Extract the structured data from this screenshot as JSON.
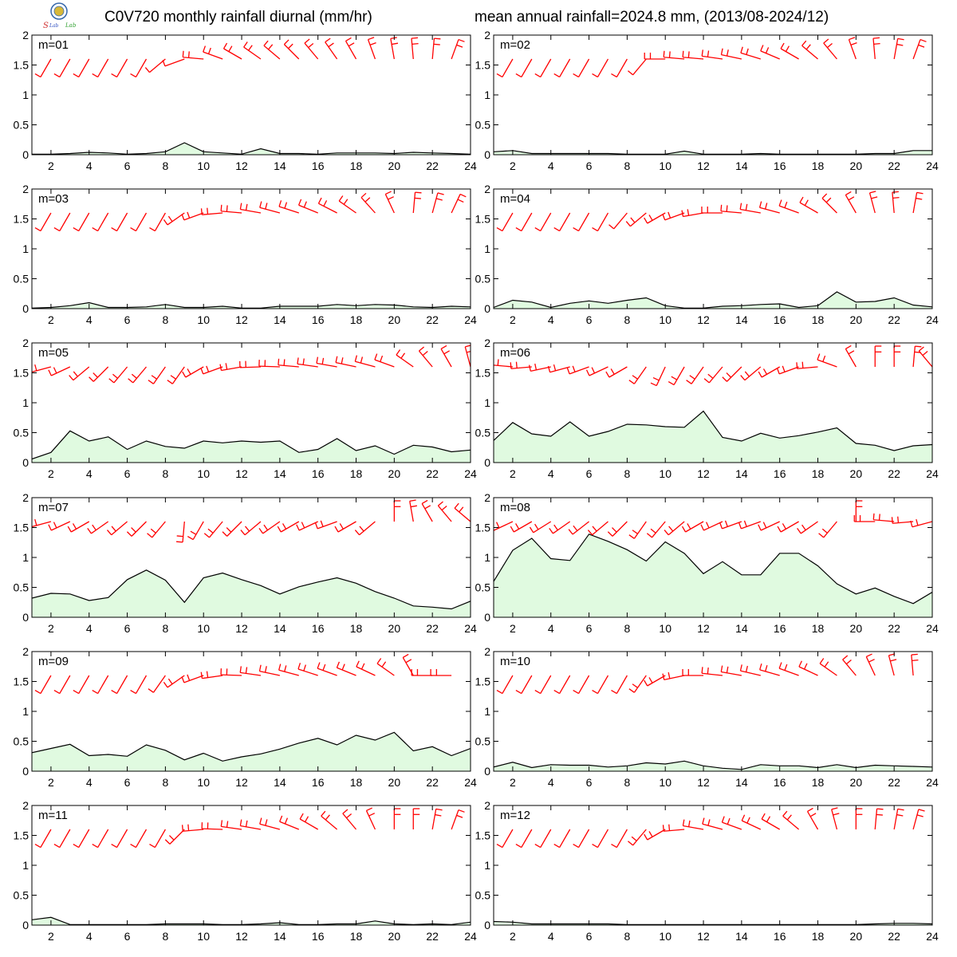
{
  "header": {
    "title_left": "C0V720 monthly rainfall diurnal (mm/hr)",
    "title_right": "mean annual rainfall=2024.8 mm, (2013/08-2024/12)",
    "logo_icon": "lab-seal-logo"
  },
  "colors": {
    "line": "#000000",
    "fill": "#e0fae0",
    "wind": "#ff0000",
    "frame": "#000000"
  },
  "chart_data": {
    "type": "area",
    "x": [
      1,
      2,
      3,
      4,
      5,
      6,
      7,
      8,
      9,
      10,
      11,
      12,
      13,
      14,
      15,
      16,
      17,
      18,
      19,
      20,
      21,
      22,
      23,
      24
    ],
    "x_ticks": [
      2,
      4,
      6,
      8,
      10,
      12,
      14,
      16,
      18,
      20,
      22,
      24
    ],
    "y_ticks": [
      0,
      0.5,
      1,
      1.5,
      2
    ],
    "y_tick_labels": [
      "0",
      "0.5",
      "1",
      "1.5",
      "2"
    ],
    "xlim": [
      1,
      24
    ],
    "ylim": [
      0,
      2
    ],
    "grid": false,
    "panels": [
      {
        "label": "m=01",
        "values": [
          0.01,
          0.01,
          0.02,
          0.04,
          0.03,
          0.01,
          0.02,
          0.05,
          0.2,
          0.05,
          0.03,
          0.01,
          0.1,
          0.02,
          0.02,
          0.01,
          0.03,
          0.03,
          0.03,
          0.02,
          0.04,
          0.03,
          0.02,
          0.01
        ],
        "wind_dir": [
          210,
          210,
          210,
          210,
          210,
          210,
          210,
          230,
          250,
          275,
          290,
          300,
          305,
          310,
          315,
          320,
          325,
          330,
          340,
          350,
          355,
          5,
          20,
          30
        ],
        "wind_speed": [
          1,
          1,
          1,
          1,
          1,
          1,
          1,
          1,
          1,
          2,
          2,
          2,
          2,
          2,
          2,
          2,
          2,
          2,
          2,
          2,
          2,
          2,
          2,
          2
        ]
      },
      {
        "label": "m=02",
        "values": [
          0.05,
          0.07,
          0.02,
          0.02,
          0.02,
          0.02,
          0.02,
          0.01,
          0.01,
          0.01,
          0.06,
          0.01,
          0.01,
          0.01,
          0.02,
          0.01,
          0.01,
          0.01,
          0.01,
          0.01,
          0.02,
          0.02,
          0.07,
          0.07
        ],
        "wind_dir": [
          210,
          210,
          210,
          210,
          210,
          210,
          210,
          210,
          220,
          270,
          275,
          275,
          278,
          282,
          287,
          293,
          300,
          310,
          320,
          340,
          355,
          10,
          20,
          30
        ],
        "wind_speed": [
          1,
          1,
          1,
          1,
          1,
          1,
          1,
          1,
          1,
          2,
          2,
          2,
          2,
          2,
          2,
          2,
          2,
          2,
          2,
          2,
          2,
          2,
          2,
          2
        ]
      },
      {
        "label": "m=03",
        "values": [
          0.01,
          0.02,
          0.05,
          0.1,
          0.02,
          0.02,
          0.03,
          0.07,
          0.02,
          0.02,
          0.04,
          0.01,
          0.01,
          0.04,
          0.04,
          0.04,
          0.07,
          0.05,
          0.07,
          0.06,
          0.03,
          0.02,
          0.04,
          0.03
        ],
        "wind_dir": [
          210,
          210,
          210,
          210,
          210,
          210,
          210,
          210,
          235,
          250,
          265,
          275,
          280,
          285,
          288,
          292,
          297,
          305,
          318,
          335,
          5,
          15,
          25,
          35
        ],
        "wind_speed": [
          1,
          1,
          1,
          1,
          1,
          1,
          1,
          1,
          2,
          2,
          2,
          2,
          2,
          2,
          2,
          2,
          2,
          2,
          2,
          2,
          2,
          2,
          2,
          2
        ]
      },
      {
        "label": "m=04",
        "values": [
          0.02,
          0.14,
          0.11,
          0.02,
          0.09,
          0.13,
          0.09,
          0.14,
          0.18,
          0.05,
          0.01,
          0.01,
          0.04,
          0.05,
          0.07,
          0.08,
          0.02,
          0.05,
          0.28,
          0.11,
          0.12,
          0.18,
          0.06,
          0.03
        ],
        "wind_dir": [
          210,
          210,
          210,
          210,
          210,
          210,
          210,
          220,
          230,
          240,
          250,
          260,
          270,
          275,
          280,
          285,
          290,
          300,
          315,
          330,
          345,
          355,
          10,
          20
        ],
        "wind_speed": [
          1,
          1,
          1,
          1,
          1,
          1,
          1,
          1,
          2,
          2,
          2,
          2,
          2,
          2,
          2,
          2,
          2,
          2,
          2,
          2,
          2,
          2,
          2,
          2
        ]
      },
      {
        "label": "m=05",
        "values": [
          0.06,
          0.17,
          0.53,
          0.36,
          0.43,
          0.22,
          0.36,
          0.27,
          0.24,
          0.36,
          0.33,
          0.36,
          0.34,
          0.36,
          0.17,
          0.22,
          0.4,
          0.2,
          0.28,
          0.14,
          0.29,
          0.26,
          0.18,
          0.21
        ],
        "wind_dir": [
          255,
          255,
          245,
          230,
          225,
          220,
          220,
          215,
          215,
          240,
          250,
          260,
          268,
          272,
          275,
          278,
          280,
          282,
          285,
          290,
          305,
          320,
          330,
          345
        ],
        "wind_speed": [
          2,
          2,
          2,
          2,
          2,
          2,
          2,
          2,
          2,
          2,
          2,
          2,
          2,
          2,
          2,
          2,
          2,
          2,
          2,
          2,
          2,
          2,
          2,
          2
        ]
      },
      {
        "label": "m=06",
        "values": [
          0.37,
          0.67,
          0.48,
          0.44,
          0.68,
          0.44,
          0.52,
          0.64,
          0.63,
          0.6,
          0.59,
          0.86,
          0.42,
          0.36,
          0.49,
          0.41,
          0.45,
          0.51,
          0.58,
          0.32,
          0.29,
          0.2,
          0.28,
          0.3
        ],
        "wind_dir": [
          300,
          275,
          265,
          258,
          255,
          250,
          245,
          240,
          215,
          205,
          210,
          215,
          220,
          225,
          230,
          240,
          250,
          265,
          290,
          330,
          0,
          0,
          5,
          320
        ],
        "wind_speed": [
          2,
          2,
          2,
          2,
          2,
          2,
          2,
          2,
          2,
          2,
          2,
          2,
          2,
          2,
          2,
          2,
          2,
          2,
          2,
          2,
          2,
          2,
          2,
          2
        ]
      },
      {
        "label": "m=07",
        "values": [
          0.32,
          0.4,
          0.39,
          0.28,
          0.33,
          0.63,
          0.79,
          0.62,
          0.25,
          0.66,
          0.74,
          0.63,
          0.53,
          0.39,
          0.51,
          0.59,
          0.66,
          0.57,
          0.43,
          0.32,
          0.19,
          0.17,
          0.14,
          0.27
        ],
        "wind_dir": [
          265,
          255,
          245,
          240,
          235,
          230,
          225,
          220,
          185,
          210,
          220,
          225,
          230,
          235,
          240,
          245,
          250,
          240,
          230,
          0,
          350,
          330,
          320,
          310
        ],
        "wind_speed": [
          2,
          2,
          2,
          2,
          2,
          2,
          2,
          2,
          2,
          2,
          2,
          2,
          2,
          2,
          2,
          2,
          2,
          2,
          2,
          2,
          2,
          2,
          2,
          2
        ]
      },
      {
        "label": "m=08",
        "values": [
          0.6,
          1.12,
          1.32,
          0.98,
          0.95,
          1.39,
          1.27,
          1.13,
          0.94,
          1.26,
          1.07,
          0.73,
          0.93,
          0.71,
          0.71,
          1.07,
          1.07,
          0.86,
          0.56,
          0.39,
          0.49,
          0.35,
          0.23,
          0.42
        ],
        "wind_dir": [
          255,
          245,
          240,
          238,
          235,
          232,
          230,
          225,
          215,
          220,
          230,
          240,
          245,
          250,
          250,
          245,
          240,
          235,
          220,
          0,
          270,
          275,
          265,
          255
        ],
        "wind_speed": [
          2,
          2,
          2,
          2,
          2,
          2,
          2,
          2,
          2,
          2,
          2,
          2,
          2,
          2,
          2,
          2,
          2,
          2,
          2,
          2,
          2,
          2,
          2,
          2
        ]
      },
      {
        "label": "m=09",
        "values": [
          0.31,
          0.38,
          0.45,
          0.26,
          0.28,
          0.25,
          0.44,
          0.35,
          0.19,
          0.3,
          0.17,
          0.24,
          0.29,
          0.37,
          0.47,
          0.55,
          0.44,
          0.6,
          0.52,
          0.65,
          0.34,
          0.41,
          0.26,
          0.38
        ],
        "wind_dir": [
          210,
          210,
          210,
          210,
          210,
          210,
          210,
          215,
          235,
          250,
          262,
          272,
          278,
          282,
          285,
          288,
          290,
          292,
          295,
          305,
          330,
          270,
          270,
          25
        ],
        "wind_speed": [
          1,
          1,
          1,
          1,
          1,
          1,
          1,
          1,
          2,
          2,
          2,
          2,
          2,
          2,
          2,
          2,
          2,
          2,
          2,
          2,
          2,
          2,
          2,
          2
        ]
      },
      {
        "label": "m=10",
        "values": [
          0.07,
          0.15,
          0.06,
          0.11,
          0.1,
          0.1,
          0.07,
          0.09,
          0.14,
          0.12,
          0.17,
          0.09,
          0.05,
          0.03,
          0.11,
          0.09,
          0.09,
          0.06,
          0.11,
          0.06,
          0.1,
          0.09,
          0.08,
          0.07
        ],
        "wind_dir": [
          210,
          210,
          210,
          210,
          210,
          210,
          210,
          210,
          215,
          240,
          258,
          270,
          276,
          280,
          283,
          286,
          290,
          295,
          305,
          320,
          335,
          345,
          355,
          25
        ],
        "wind_speed": [
          1,
          1,
          1,
          1,
          1,
          1,
          1,
          1,
          2,
          2,
          2,
          2,
          2,
          2,
          2,
          2,
          2,
          2,
          2,
          2,
          2,
          2,
          2,
          2
        ]
      },
      {
        "label": "m=11",
        "values": [
          0.09,
          0.13,
          0.01,
          0.01,
          0.01,
          0.01,
          0.01,
          0.02,
          0.02,
          0.02,
          0.01,
          0.01,
          0.02,
          0.04,
          0.01,
          0.01,
          0.02,
          0.02,
          0.07,
          0.02,
          0.01,
          0.02,
          0.01,
          0.05
        ],
        "wind_dir": [
          210,
          210,
          210,
          210,
          210,
          210,
          210,
          210,
          225,
          265,
          272,
          278,
          280,
          285,
          292,
          300,
          310,
          320,
          335,
          0,
          0,
          10,
          20,
          30
        ],
        "wind_speed": [
          1,
          1,
          1,
          1,
          1,
          1,
          1,
          1,
          2,
          2,
          2,
          2,
          2,
          2,
          2,
          2,
          2,
          2,
          2,
          2,
          2,
          2,
          2,
          2
        ]
      },
      {
        "label": "m=12",
        "values": [
          0.06,
          0.05,
          0.02,
          0.02,
          0.02,
          0.02,
          0.02,
          0.01,
          0.01,
          0.01,
          0.01,
          0.01,
          0.01,
          0.01,
          0.01,
          0.01,
          0.01,
          0.01,
          0.01,
          0.01,
          0.02,
          0.03,
          0.03,
          0.02
        ],
        "wind_dir": [
          210,
          210,
          210,
          210,
          210,
          210,
          210,
          210,
          220,
          240,
          265,
          280,
          285,
          290,
          295,
          300,
          310,
          330,
          345,
          0,
          5,
          10,
          15,
          25
        ],
        "wind_speed": [
          1,
          1,
          1,
          1,
          1,
          1,
          1,
          1,
          2,
          2,
          2,
          2,
          2,
          2,
          2,
          2,
          2,
          2,
          2,
          2,
          2,
          2,
          2,
          2
        ]
      }
    ]
  }
}
